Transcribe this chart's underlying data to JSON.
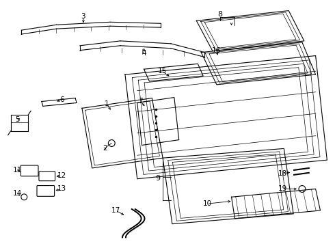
{
  "bg_color": "#ffffff",
  "line_color": "#000000",
  "figsize": [
    4.9,
    3.6
  ],
  "dpi": 100
}
